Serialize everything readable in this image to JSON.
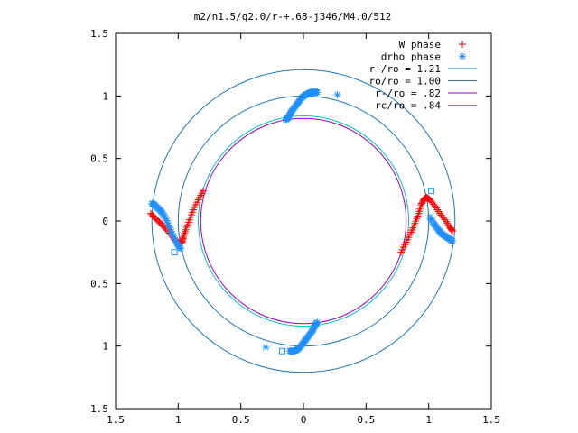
{
  "chart_data": {
    "type": "scatter",
    "title": "m2/n1.5/q2.0/r-+.68-j346/M4.0/512",
    "xlim": [
      -1.5,
      1.5
    ],
    "ylim": [
      -1.5,
      1.5
    ],
    "x_tick_labels": [
      "1.5",
      "1",
      "0.5",
      "0",
      "0.5",
      "1",
      "1.5"
    ],
    "x_tick_values": [
      -1.5,
      -1,
      -0.5,
      0,
      0.5,
      1,
      1.5
    ],
    "y_tick_labels": [
      "1.5",
      "1",
      "0.5",
      "0",
      "0.5",
      "1",
      "1.5"
    ],
    "y_tick_values": [
      1.5,
      1,
      0.5,
      0,
      -0.5,
      -1,
      -1.5
    ],
    "grid": false,
    "legend_position": "top-right",
    "legend": [
      {
        "label": "W phase",
        "marker": "+",
        "color": "#ff0000"
      },
      {
        "label": "drho phase",
        "marker": "*",
        "color": "#1e90ff"
      },
      {
        "label": "r+/ro = 1.21",
        "line": true,
        "color": "#1f77b4"
      },
      {
        "label": "ro/ro = 1.00",
        "line": true,
        "color": "#1f77b4"
      },
      {
        "label": "r-/ro =  .82",
        "line": true,
        "color": "#9400d3"
      },
      {
        "label": "rc/ro =  .84",
        "line": true,
        "color": "#00c0c0"
      }
    ],
    "circles": [
      {
        "radius": 1.21,
        "color": "#1f77b4"
      },
      {
        "radius": 1.0,
        "color": "#1f77b4"
      },
      {
        "radius": 0.82,
        "color": "#9400d3"
      },
      {
        "radius": 0.84,
        "color": "#00c0c0"
      }
    ],
    "series": [
      {
        "name": "W phase",
        "color": "#ff0000",
        "marker": "+",
        "segments": [
          {
            "x": [
              -0.8,
              -0.84,
              -0.88,
              -0.91,
              -0.94,
              -0.96,
              -0.97,
              -0.99,
              -1.02,
              -1.06,
              -1.1,
              -1.14,
              -1.18,
              -1.22
            ],
            "y": [
              0.24,
              0.17,
              0.09,
              0.01,
              -0.07,
              -0.13,
              -0.17,
              -0.18,
              -0.16,
              -0.11,
              -0.06,
              -0.02,
              0.02,
              0.06
            ]
          },
          {
            "x": [
              0.78,
              0.82,
              0.86,
              0.89,
              0.92,
              0.94,
              0.96,
              0.98,
              1.01,
              1.05,
              1.09,
              1.13,
              1.17,
              1.19
            ],
            "y": [
              -0.25,
              -0.17,
              -0.09,
              -0.02,
              0.06,
              0.13,
              0.17,
              0.19,
              0.17,
              0.12,
              0.06,
              0.01,
              -0.05,
              -0.08
            ]
          }
        ]
      },
      {
        "name": "drho phase",
        "color": "#1e90ff",
        "marker": "*",
        "segments": [
          {
            "x": [
              -1.21,
              -1.19,
              -1.16,
              -1.13,
              -1.1,
              -1.07,
              -1.04,
              -1.01,
              -0.98
            ],
            "y": [
              0.14,
              0.13,
              0.1,
              0.07,
              0.02,
              -0.05,
              -0.12,
              -0.18,
              -0.22
            ]
          },
          {
            "x": [
              -0.14,
              -0.12,
              -0.1,
              -0.07,
              -0.04,
              -0.01,
              0.02,
              0.04,
              0.06,
              0.09,
              0.11
            ],
            "y": [
              0.81,
              0.83,
              0.87,
              0.91,
              0.95,
              0.99,
              1.01,
              1.02,
              1.03,
              1.03,
              1.03
            ]
          },
          {
            "x": [
              1.01,
              1.04,
              1.07,
              1.1,
              1.13,
              1.16,
              1.19
            ],
            "y": [
              0.03,
              -0.02,
              -0.06,
              -0.1,
              -0.12,
              -0.14,
              -0.16
            ]
          },
          {
            "x": [
              -0.11,
              -0.08,
              -0.05,
              -0.02,
              0.01,
              0.04,
              0.07,
              0.09,
              0.11
            ],
            "y": [
              -1.04,
              -1.04,
              -1.03,
              -1.0,
              -0.96,
              -0.92,
              -0.88,
              -0.84,
              -0.81
            ]
          }
        ],
        "outliers": {
          "x": [
            -1.03,
            0.27,
            1.02,
            -0.3,
            -0.17
          ],
          "y": [
            -0.25,
            1.01,
            0.24,
            -1.01,
            -1.04
          ]
        }
      }
    ]
  }
}
